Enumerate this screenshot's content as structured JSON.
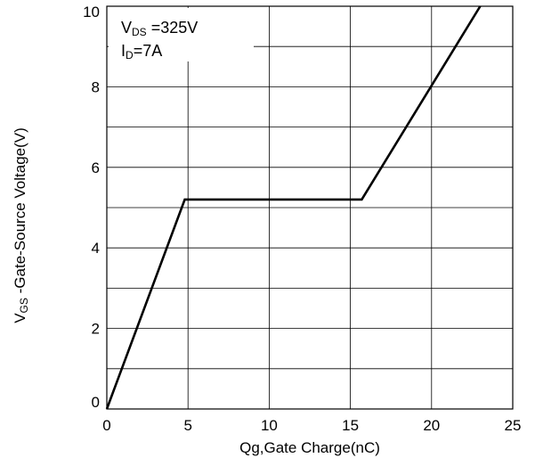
{
  "chart_data": {
    "type": "line",
    "xlabel": "Qg,Gate Charge(nC)",
    "ylabel": {
      "main_before": "V",
      "subscript": "GS",
      "main_after": " -Gate-Source Voltage(V)"
    },
    "xlim": [
      0,
      25
    ],
    "ylim": [
      0,
      10
    ],
    "x_ticks": [
      0,
      5,
      10,
      15,
      20,
      25
    ],
    "y_ticks": [
      0,
      2,
      4,
      6,
      8,
      10
    ],
    "x_grid": [
      0,
      5,
      10,
      15,
      20,
      25
    ],
    "y_grid": [
      0,
      1,
      2,
      3,
      4,
      5,
      6,
      7,
      8,
      9,
      10
    ],
    "grid": true,
    "legend_position": "top-left",
    "annotations": [
      {
        "main": "V",
        "sub": "DS",
        "rest": " =325V"
      },
      {
        "main": "I",
        "sub": "D",
        "rest": "=7A"
      }
    ],
    "series": [
      {
        "color": "#000000",
        "x": [
          0,
          4.8,
          15.7,
          23.3
        ],
        "y": [
          0,
          5.2,
          5.2,
          10.2
        ]
      }
    ]
  }
}
